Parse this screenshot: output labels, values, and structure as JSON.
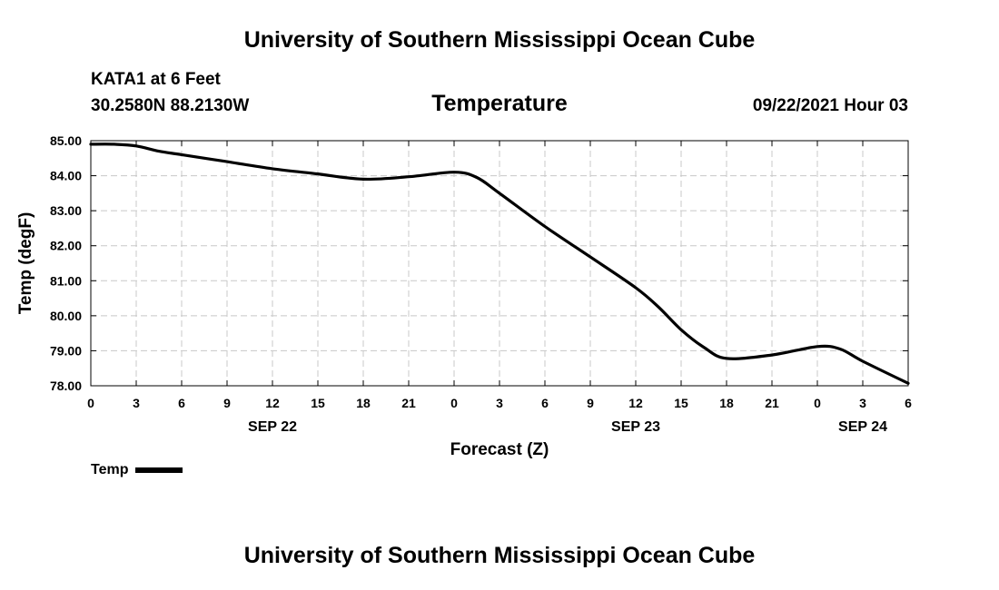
{
  "header": {
    "top_title": "University of Southern Mississippi Ocean Cube",
    "station": "KATA1 at 6 Feet",
    "coords": "30.2580N  88.2130W",
    "timestamp": "09/22/2021 Hour 03",
    "bottom_title": "University of Southern Mississippi Ocean Cube"
  },
  "colors": {
    "line": "#000000",
    "grid": "#c8c8c8",
    "background": "#ffffff"
  },
  "chart_data": {
    "type": "line",
    "title": "Temperature",
    "xlabel": "Forecast (Z)",
    "ylabel": "Temp (degF)",
    "ylim": [
      78.0,
      85.0
    ],
    "yticks": [
      "78.00",
      "79.00",
      "80.00",
      "81.00",
      "82.00",
      "83.00",
      "84.00",
      "85.00"
    ],
    "xlim": [
      0,
      54
    ],
    "xticks": [
      {
        "x": 0,
        "label": "0"
      },
      {
        "x": 3,
        "label": "3"
      },
      {
        "x": 6,
        "label": "6"
      },
      {
        "x": 9,
        "label": "9"
      },
      {
        "x": 12,
        "label": "12"
      },
      {
        "x": 15,
        "label": "15"
      },
      {
        "x": 18,
        "label": "18"
      },
      {
        "x": 21,
        "label": "21"
      },
      {
        "x": 24,
        "label": "0"
      },
      {
        "x": 27,
        "label": "3"
      },
      {
        "x": 30,
        "label": "6"
      },
      {
        "x": 33,
        "label": "9"
      },
      {
        "x": 36,
        "label": "12"
      },
      {
        "x": 39,
        "label": "15"
      },
      {
        "x": 42,
        "label": "18"
      },
      {
        "x": 45,
        "label": "21"
      },
      {
        "x": 48,
        "label": "0"
      },
      {
        "x": 51,
        "label": "3"
      },
      {
        "x": 54,
        "label": "6"
      }
    ],
    "date_labels": [
      {
        "x": 12,
        "label": "SEP 22"
      },
      {
        "x": 36,
        "label": "SEP 23"
      },
      {
        "x": 51,
        "label": "SEP 24"
      }
    ],
    "grid": true,
    "legend": "bottom-left",
    "series": [
      {
        "name": "Temp",
        "x": [
          0,
          1.5,
          3,
          4.5,
          6,
          9,
          12,
          15,
          18,
          21,
          24,
          25.5,
          27,
          30,
          33,
          36,
          37.5,
          39,
          40.5,
          42,
          45,
          48,
          49.5,
          51,
          54
        ],
        "y": [
          84.9,
          84.9,
          84.85,
          84.7,
          84.6,
          84.4,
          84.2,
          84.05,
          83.9,
          83.97,
          84.1,
          83.95,
          83.5,
          82.55,
          81.68,
          80.8,
          80.25,
          79.6,
          79.1,
          78.78,
          78.88,
          79.12,
          79.05,
          78.7,
          78.07
        ]
      }
    ]
  }
}
